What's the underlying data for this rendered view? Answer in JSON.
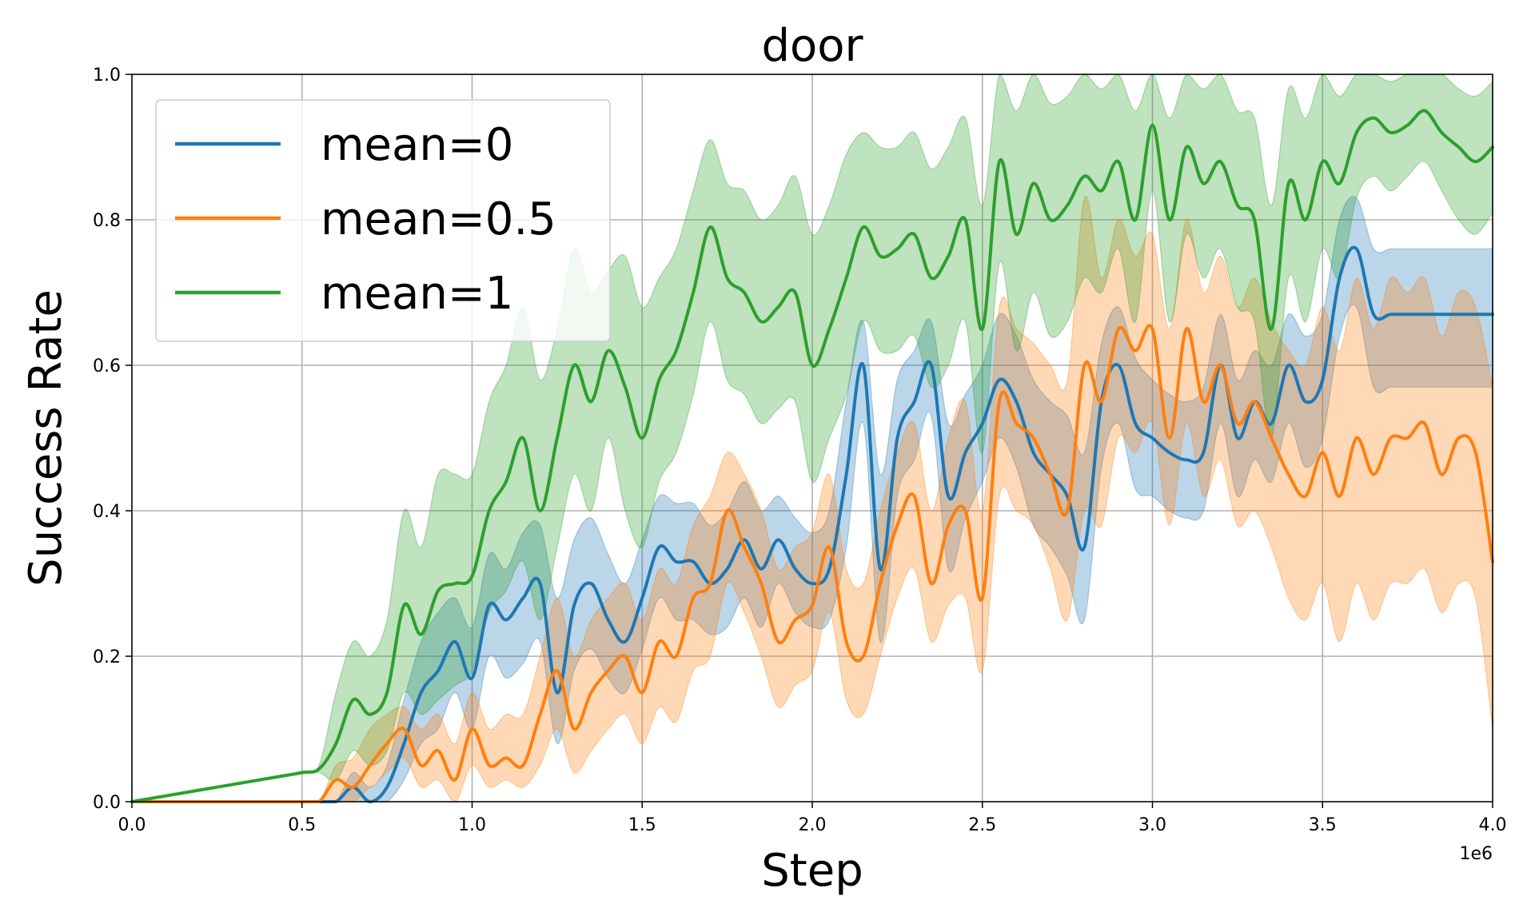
{
  "chart_data": {
    "type": "line",
    "title": "door",
    "xlabel": "Step",
    "ylabel": "Success Rate",
    "x_offset_label": "1e6",
    "xlim": [
      0,
      4.0
    ],
    "ylim": [
      0,
      1.0
    ],
    "xticks": [
      "0.0",
      "0.5",
      "1.0",
      "1.5",
      "2.0",
      "2.5",
      "3.0",
      "3.5",
      "4.0"
    ],
    "yticks": [
      "0.0",
      "0.2",
      "0.4",
      "0.6",
      "0.8",
      "1.0"
    ],
    "grid": true,
    "legend_position": "top-left",
    "x": [
      0.0,
      0.1,
      0.2,
      0.3,
      0.4,
      0.5,
      0.55,
      0.6,
      0.65,
      0.7,
      0.75,
      0.8,
      0.85,
      0.9,
      0.95,
      1.0,
      1.05,
      1.1,
      1.15,
      1.2,
      1.25,
      1.3,
      1.35,
      1.4,
      1.45,
      1.5,
      1.55,
      1.6,
      1.65,
      1.7,
      1.75,
      1.8,
      1.85,
      1.9,
      1.95,
      2.0,
      2.05,
      2.1,
      2.15,
      2.2,
      2.25,
      2.3,
      2.35,
      2.4,
      2.45,
      2.5,
      2.55,
      2.6,
      2.65,
      2.7,
      2.75,
      2.8,
      2.85,
      2.9,
      2.95,
      3.0,
      3.05,
      3.1,
      3.15,
      3.2,
      3.25,
      3.3,
      3.35,
      3.4,
      3.45,
      3.5,
      3.55,
      3.6,
      3.65,
      3.7,
      3.75,
      3.8,
      3.85,
      3.9,
      3.95,
      4.0
    ],
    "series": [
      {
        "name": "mean=0",
        "color": "#1f77b4",
        "values": [
          0.0,
          0.0,
          0.0,
          0.0,
          0.0,
          0.0,
          0.0,
          0.0,
          0.02,
          0.0,
          0.02,
          0.08,
          0.15,
          0.18,
          0.22,
          0.17,
          0.27,
          0.25,
          0.28,
          0.3,
          0.15,
          0.27,
          0.3,
          0.25,
          0.22,
          0.28,
          0.35,
          0.33,
          0.33,
          0.3,
          0.32,
          0.36,
          0.32,
          0.36,
          0.32,
          0.3,
          0.32,
          0.45,
          0.6,
          0.32,
          0.5,
          0.55,
          0.6,
          0.42,
          0.48,
          0.52,
          0.58,
          0.55,
          0.48,
          0.45,
          0.42,
          0.35,
          0.55,
          0.6,
          0.52,
          0.5,
          0.48,
          0.47,
          0.48,
          0.6,
          0.5,
          0.55,
          0.52,
          0.6,
          0.55,
          0.58,
          0.72,
          0.76,
          0.67,
          0.67,
          0.67,
          0.67,
          0.67,
          0.67,
          0.67,
          0.67
        ],
        "upper": [
          0.0,
          0.0,
          0.0,
          0.0,
          0.0,
          0.0,
          0.0,
          0.0,
          0.04,
          0.02,
          0.05,
          0.14,
          0.22,
          0.26,
          0.28,
          0.24,
          0.34,
          0.32,
          0.37,
          0.38,
          0.28,
          0.36,
          0.39,
          0.34,
          0.3,
          0.36,
          0.42,
          0.41,
          0.41,
          0.38,
          0.4,
          0.44,
          0.4,
          0.42,
          0.39,
          0.37,
          0.4,
          0.55,
          0.66,
          0.45,
          0.58,
          0.62,
          0.66,
          0.52,
          0.56,
          0.6,
          0.67,
          0.64,
          0.58,
          0.55,
          0.53,
          0.48,
          0.63,
          0.68,
          0.61,
          0.58,
          0.56,
          0.55,
          0.57,
          0.67,
          0.58,
          0.62,
          0.6,
          0.67,
          0.64,
          0.67,
          0.8,
          0.83,
          0.76,
          0.76,
          0.76,
          0.76,
          0.76,
          0.76,
          0.76,
          0.76
        ],
        "lower": [
          0.0,
          0.0,
          0.0,
          0.0,
          0.0,
          0.0,
          0.0,
          0.0,
          0.0,
          0.0,
          0.0,
          0.03,
          0.08,
          0.1,
          0.15,
          0.1,
          0.2,
          0.17,
          0.19,
          0.22,
          0.08,
          0.18,
          0.21,
          0.17,
          0.15,
          0.21,
          0.28,
          0.25,
          0.25,
          0.23,
          0.24,
          0.28,
          0.24,
          0.3,
          0.26,
          0.24,
          0.25,
          0.35,
          0.52,
          0.22,
          0.42,
          0.47,
          0.53,
          0.32,
          0.39,
          0.44,
          0.5,
          0.46,
          0.38,
          0.35,
          0.31,
          0.25,
          0.46,
          0.52,
          0.43,
          0.42,
          0.4,
          0.39,
          0.4,
          0.52,
          0.42,
          0.47,
          0.44,
          0.52,
          0.46,
          0.5,
          0.64,
          0.68,
          0.57,
          0.57,
          0.57,
          0.57,
          0.57,
          0.57,
          0.57,
          0.57
        ]
      },
      {
        "name": "mean=0.5",
        "color": "#ff7f0e",
        "values": [
          0.0,
          0.0,
          0.0,
          0.0,
          0.0,
          0.0,
          0.0,
          0.03,
          0.02,
          0.05,
          0.08,
          0.1,
          0.05,
          0.07,
          0.03,
          0.1,
          0.05,
          0.06,
          0.05,
          0.12,
          0.18,
          0.1,
          0.15,
          0.18,
          0.2,
          0.15,
          0.22,
          0.2,
          0.28,
          0.3,
          0.4,
          0.35,
          0.3,
          0.22,
          0.25,
          0.27,
          0.35,
          0.22,
          0.2,
          0.3,
          0.38,
          0.42,
          0.3,
          0.38,
          0.4,
          0.28,
          0.55,
          0.52,
          0.5,
          0.45,
          0.4,
          0.6,
          0.55,
          0.65,
          0.62,
          0.65,
          0.5,
          0.65,
          0.55,
          0.6,
          0.52,
          0.55,
          0.5,
          0.45,
          0.42,
          0.48,
          0.42,
          0.5,
          0.45,
          0.5,
          0.5,
          0.52,
          0.45,
          0.5,
          0.48,
          0.33
        ],
        "upper": [
          0.0,
          0.0,
          0.0,
          0.0,
          0.0,
          0.0,
          0.0,
          0.05,
          0.06,
          0.1,
          0.12,
          0.13,
          0.1,
          0.12,
          0.08,
          0.15,
          0.1,
          0.12,
          0.12,
          0.2,
          0.28,
          0.2,
          0.25,
          0.28,
          0.3,
          0.25,
          0.32,
          0.3,
          0.38,
          0.42,
          0.48,
          0.45,
          0.4,
          0.32,
          0.35,
          0.37,
          0.45,
          0.32,
          0.3,
          0.4,
          0.48,
          0.52,
          0.4,
          0.5,
          0.55,
          0.4,
          0.68,
          0.65,
          0.63,
          0.6,
          0.58,
          0.83,
          0.72,
          0.8,
          0.75,
          0.78,
          0.65,
          0.8,
          0.7,
          0.75,
          0.68,
          0.72,
          0.66,
          0.62,
          0.6,
          0.68,
          0.62,
          0.72,
          0.65,
          0.72,
          0.7,
          0.72,
          0.64,
          0.7,
          0.68,
          0.57
        ],
        "lower": [
          0.0,
          0.0,
          0.0,
          0.0,
          0.0,
          0.0,
          0.0,
          0.0,
          0.0,
          0.02,
          0.04,
          0.06,
          0.02,
          0.03,
          0.0,
          0.05,
          0.02,
          0.03,
          0.02,
          0.05,
          0.1,
          0.04,
          0.07,
          0.1,
          0.12,
          0.08,
          0.13,
          0.11,
          0.18,
          0.2,
          0.3,
          0.26,
          0.2,
          0.13,
          0.16,
          0.18,
          0.26,
          0.14,
          0.12,
          0.2,
          0.28,
          0.32,
          0.22,
          0.27,
          0.28,
          0.18,
          0.42,
          0.4,
          0.38,
          0.32,
          0.25,
          0.4,
          0.38,
          0.5,
          0.48,
          0.52,
          0.38,
          0.52,
          0.42,
          0.47,
          0.38,
          0.4,
          0.35,
          0.28,
          0.25,
          0.3,
          0.22,
          0.3,
          0.25,
          0.3,
          0.3,
          0.32,
          0.26,
          0.3,
          0.28,
          0.1
        ]
      },
      {
        "name": "mean=1",
        "color": "#2ca02c",
        "values": [
          0.0,
          0.008,
          0.016,
          0.024,
          0.032,
          0.04,
          0.045,
          0.08,
          0.14,
          0.12,
          0.15,
          0.27,
          0.23,
          0.29,
          0.3,
          0.31,
          0.4,
          0.44,
          0.5,
          0.4,
          0.5,
          0.6,
          0.55,
          0.62,
          0.57,
          0.5,
          0.58,
          0.62,
          0.7,
          0.79,
          0.72,
          0.7,
          0.66,
          0.68,
          0.7,
          0.6,
          0.65,
          0.72,
          0.79,
          0.75,
          0.76,
          0.78,
          0.72,
          0.75,
          0.8,
          0.65,
          0.88,
          0.78,
          0.85,
          0.8,
          0.82,
          0.86,
          0.84,
          0.88,
          0.8,
          0.93,
          0.8,
          0.9,
          0.85,
          0.88,
          0.82,
          0.8,
          0.65,
          0.85,
          0.8,
          0.88,
          0.85,
          0.92,
          0.94,
          0.92,
          0.93,
          0.95,
          0.92,
          0.9,
          0.88,
          0.9
        ],
        "upper": [
          0.0,
          0.008,
          0.016,
          0.024,
          0.032,
          0.04,
          0.05,
          0.15,
          0.22,
          0.2,
          0.25,
          0.4,
          0.35,
          0.45,
          0.45,
          0.45,
          0.55,
          0.6,
          0.68,
          0.58,
          0.65,
          0.76,
          0.7,
          0.73,
          0.75,
          0.68,
          0.72,
          0.76,
          0.84,
          0.91,
          0.85,
          0.84,
          0.8,
          0.82,
          0.86,
          0.78,
          0.82,
          0.89,
          0.92,
          0.9,
          0.9,
          0.92,
          0.87,
          0.9,
          0.94,
          0.82,
          1.0,
          0.95,
          1.0,
          0.96,
          0.97,
          1.0,
          0.98,
          1.0,
          0.95,
          1.0,
          0.94,
          1.0,
          0.98,
          1.0,
          0.95,
          0.94,
          0.82,
          0.98,
          0.94,
          1.0,
          0.97,
          1.0,
          1.0,
          0.99,
          1.0,
          1.0,
          1.0,
          0.98,
          0.97,
          0.99
        ],
        "lower": [
          0.0,
          0.008,
          0.016,
          0.024,
          0.032,
          0.04,
          0.04,
          0.03,
          0.07,
          0.05,
          0.07,
          0.15,
          0.12,
          0.14,
          0.16,
          0.18,
          0.26,
          0.29,
          0.33,
          0.25,
          0.35,
          0.45,
          0.4,
          0.5,
          0.4,
          0.35,
          0.44,
          0.48,
          0.56,
          0.66,
          0.58,
          0.56,
          0.52,
          0.54,
          0.55,
          0.44,
          0.5,
          0.56,
          0.66,
          0.62,
          0.62,
          0.64,
          0.57,
          0.6,
          0.66,
          0.48,
          0.74,
          0.62,
          0.7,
          0.64,
          0.66,
          0.72,
          0.7,
          0.76,
          0.66,
          0.84,
          0.66,
          0.78,
          0.72,
          0.76,
          0.68,
          0.66,
          0.5,
          0.72,
          0.66,
          0.76,
          0.72,
          0.83,
          0.86,
          0.84,
          0.86,
          0.88,
          0.84,
          0.8,
          0.78,
          0.81
        ]
      }
    ]
  }
}
